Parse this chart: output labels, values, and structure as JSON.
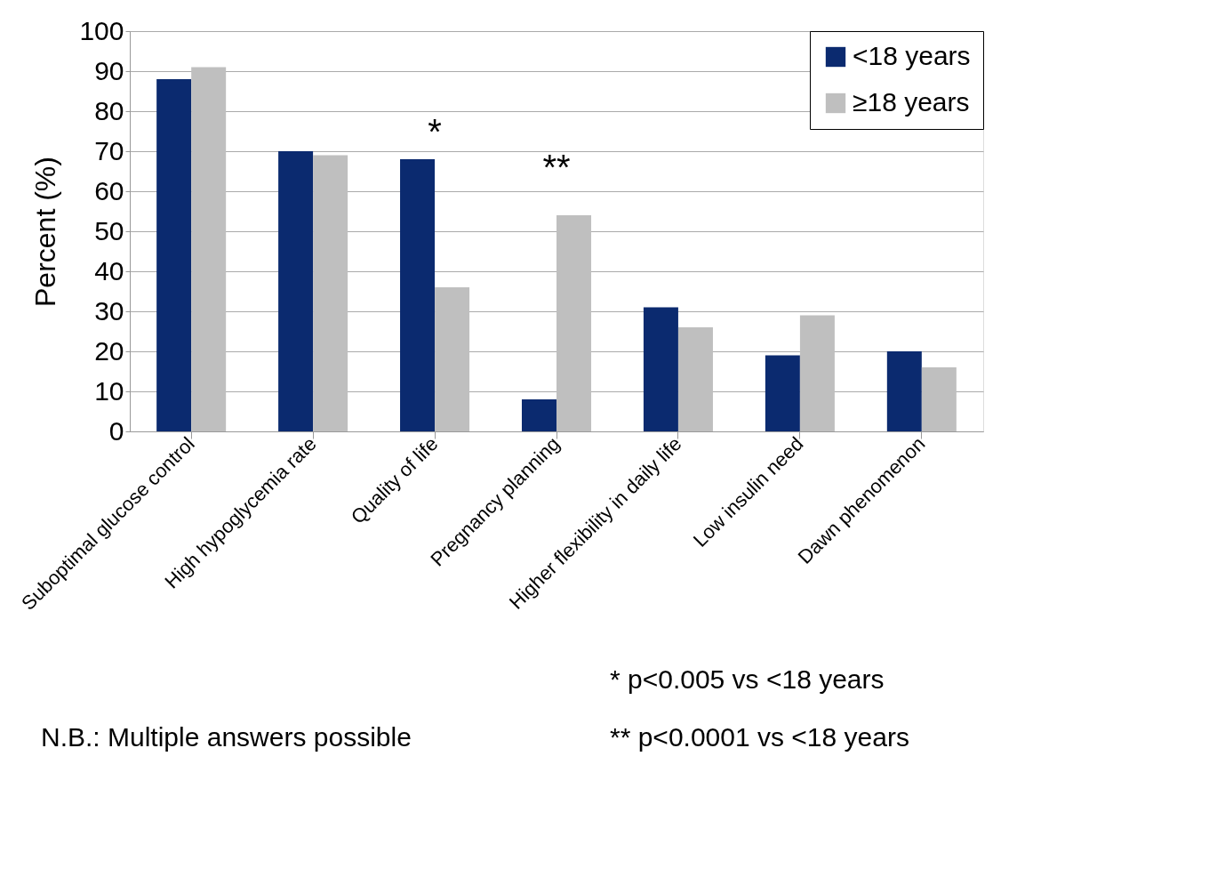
{
  "chart_data": {
    "type": "bar",
    "ylabel": "Percent (%)",
    "categories": [
      "Suboptimal glucose control",
      "High hypoglycemia rate",
      "Quality of life",
      "Pregnancy planning",
      "Higher flexibility in daily life",
      "Low insulin need",
      "Dawn phenomenon"
    ],
    "series": [
      {
        "name": "<18 years",
        "color": "#0b2a6f",
        "values": [
          88,
          70,
          68,
          8,
          31,
          19,
          20
        ]
      },
      {
        "name": "≥18 years",
        "color": "#bfbfbf",
        "values": [
          91,
          69,
          36,
          54,
          26,
          29,
          16
        ]
      }
    ],
    "ylim": [
      0,
      100
    ],
    "yticks": [
      0,
      10,
      20,
      30,
      40,
      50,
      60,
      70,
      80,
      90,
      100
    ],
    "grid": "y",
    "legend": "top right",
    "annotations": [
      "*",
      "**",
      "*   p<0.005   vs <18 years",
      "N.B.: Multiple answers possible",
      "**  p<0.0001 vs <18 years"
    ]
  }
}
